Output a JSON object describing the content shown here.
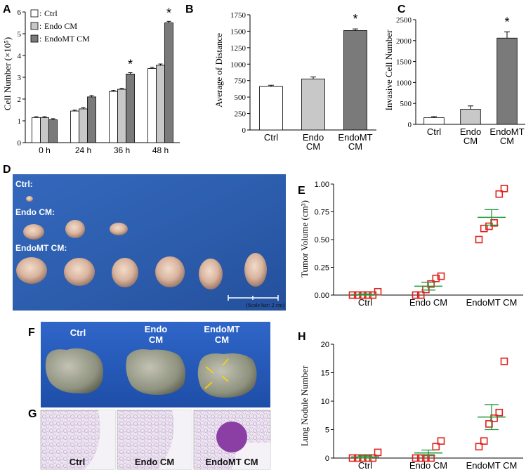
{
  "panels": {
    "A": "A",
    "B": "B",
    "C": "C",
    "D": "D",
    "E": "E",
    "F": "F",
    "G": "G",
    "H": "H"
  },
  "colors": {
    "ctrl_fill": "#ffffff",
    "endo_fill": "#c8c8c8",
    "endomt_fill": "#7a7a7a",
    "scatter_marker": "#e0201c",
    "scatter_mean": "#1f9a3a",
    "photo_blue": "#2a5fb0"
  },
  "chart_data": [
    {
      "id": "A",
      "type": "bar",
      "title": "",
      "ylabel": "Cell Number (×10⁵)",
      "ylim": [
        0,
        6
      ],
      "yticks": [
        0,
        1,
        2,
        3,
        4,
        5,
        6
      ],
      "categories": [
        "0 h",
        "24 h",
        "36 h",
        "48 h"
      ],
      "series": [
        {
          "name": "Ctrl",
          "values": [
            1.15,
            1.45,
            2.35,
            3.4
          ],
          "errors": [
            0.04,
            0.04,
            0.05,
            0.06
          ]
        },
        {
          "name": "Endo CM",
          "values": [
            1.15,
            1.55,
            2.45,
            3.55
          ],
          "errors": [
            0.04,
            0.05,
            0.04,
            0.06
          ]
        },
        {
          "name": "EndoMT CM",
          "values": [
            1.05,
            2.1,
            3.15,
            5.5
          ],
          "errors": [
            0.05,
            0.06,
            0.06,
            0.07
          ]
        }
      ],
      "legend": [
        "Ctrl",
        "Endo CM",
        "EndoMT CM"
      ],
      "legend_prefix": ":",
      "significance": [
        {
          "category": "36 h",
          "label": "*"
        },
        {
          "category": "48 h",
          "label": "*"
        }
      ]
    },
    {
      "id": "B",
      "type": "bar",
      "ylabel": "Average of Distance",
      "ylim": [
        0,
        1750
      ],
      "yticks": [
        0,
        250,
        500,
        750,
        1000,
        1250,
        1500,
        1750
      ],
      "categories": [
        [
          "Ctrl"
        ],
        [
          "Endo",
          "CM"
        ],
        [
          "EndoMT",
          "CM"
        ]
      ],
      "values": [
        660,
        775,
        1510
      ],
      "errors": [
        20,
        30,
        25
      ],
      "significance": [
        {
          "index": 2,
          "label": "*"
        }
      ]
    },
    {
      "id": "C",
      "type": "bar",
      "ylabel": "Invasive Cell Number",
      "ylim": [
        0,
        2500
      ],
      "yticks": [
        0,
        500,
        1000,
        1500,
        2000,
        2500
      ],
      "categories": [
        [
          "Ctrl"
        ],
        [
          "Endo",
          "CM"
        ],
        [
          "EndoMT",
          "CM"
        ]
      ],
      "values": [
        160,
        360,
        2060
      ],
      "errors": [
        25,
        80,
        150
      ],
      "significance": [
        {
          "index": 2,
          "label": "*"
        }
      ]
    },
    {
      "id": "E",
      "type": "scatter",
      "ylabel": "Tumor Volume (cm³)",
      "ylim": [
        0,
        1.0
      ],
      "yticks": [
        "0.00",
        "0.25",
        "0.50",
        "0.75",
        "1.00"
      ],
      "categories": [
        "Ctrl",
        "Endo CM",
        "EndoMT CM"
      ],
      "groups": [
        {
          "name": "Ctrl",
          "points": [
            0.0,
            0.0,
            0.0,
            0.0,
            0.0,
            0.03
          ],
          "mean": 0.005,
          "sem": 0.005
        },
        {
          "name": "Endo CM",
          "points": [
            0.0,
            0.0,
            0.05,
            0.1,
            0.15,
            0.17
          ],
          "mean": 0.08,
          "sem": 0.035
        },
        {
          "name": "EndoMT CM",
          "points": [
            0.5,
            0.6,
            0.62,
            0.65,
            0.91,
            0.96
          ],
          "mean": 0.7,
          "sem": 0.07
        }
      ]
    },
    {
      "id": "H",
      "type": "scatter",
      "ylabel": "Lung Nodule Number",
      "ylim": [
        0,
        20
      ],
      "yticks": [
        0,
        5,
        10,
        15,
        20
      ],
      "categories": [
        "Ctrl",
        "Endo CM",
        "EndoMT CM"
      ],
      "groups": [
        {
          "name": "Ctrl",
          "points": [
            0,
            0,
            0,
            0,
            0,
            1
          ],
          "mean": 0.2,
          "sem": 0.2
        },
        {
          "name": "Endo CM",
          "points": [
            0,
            0,
            0,
            0,
            2,
            3
          ],
          "mean": 0.9,
          "sem": 0.5
        },
        {
          "name": "EndoMT CM",
          "points": [
            2,
            3,
            6,
            7,
            8,
            17
          ],
          "mean": 7.2,
          "sem": 2.2
        }
      ]
    }
  ],
  "photo_D": {
    "rows": [
      "Ctrl:",
      "Endo CM:",
      "EndoMT CM:"
    ],
    "scale_label": "(Scale bar: 2 cm)"
  },
  "photo_F": {
    "labels": [
      [
        "Ctrl"
      ],
      [
        "Endo",
        "CM"
      ],
      [
        "EndoMT",
        "CM"
      ]
    ]
  },
  "photo_G": {
    "labels": [
      "Ctrl",
      "Endo CM",
      "EndoMT CM"
    ]
  }
}
